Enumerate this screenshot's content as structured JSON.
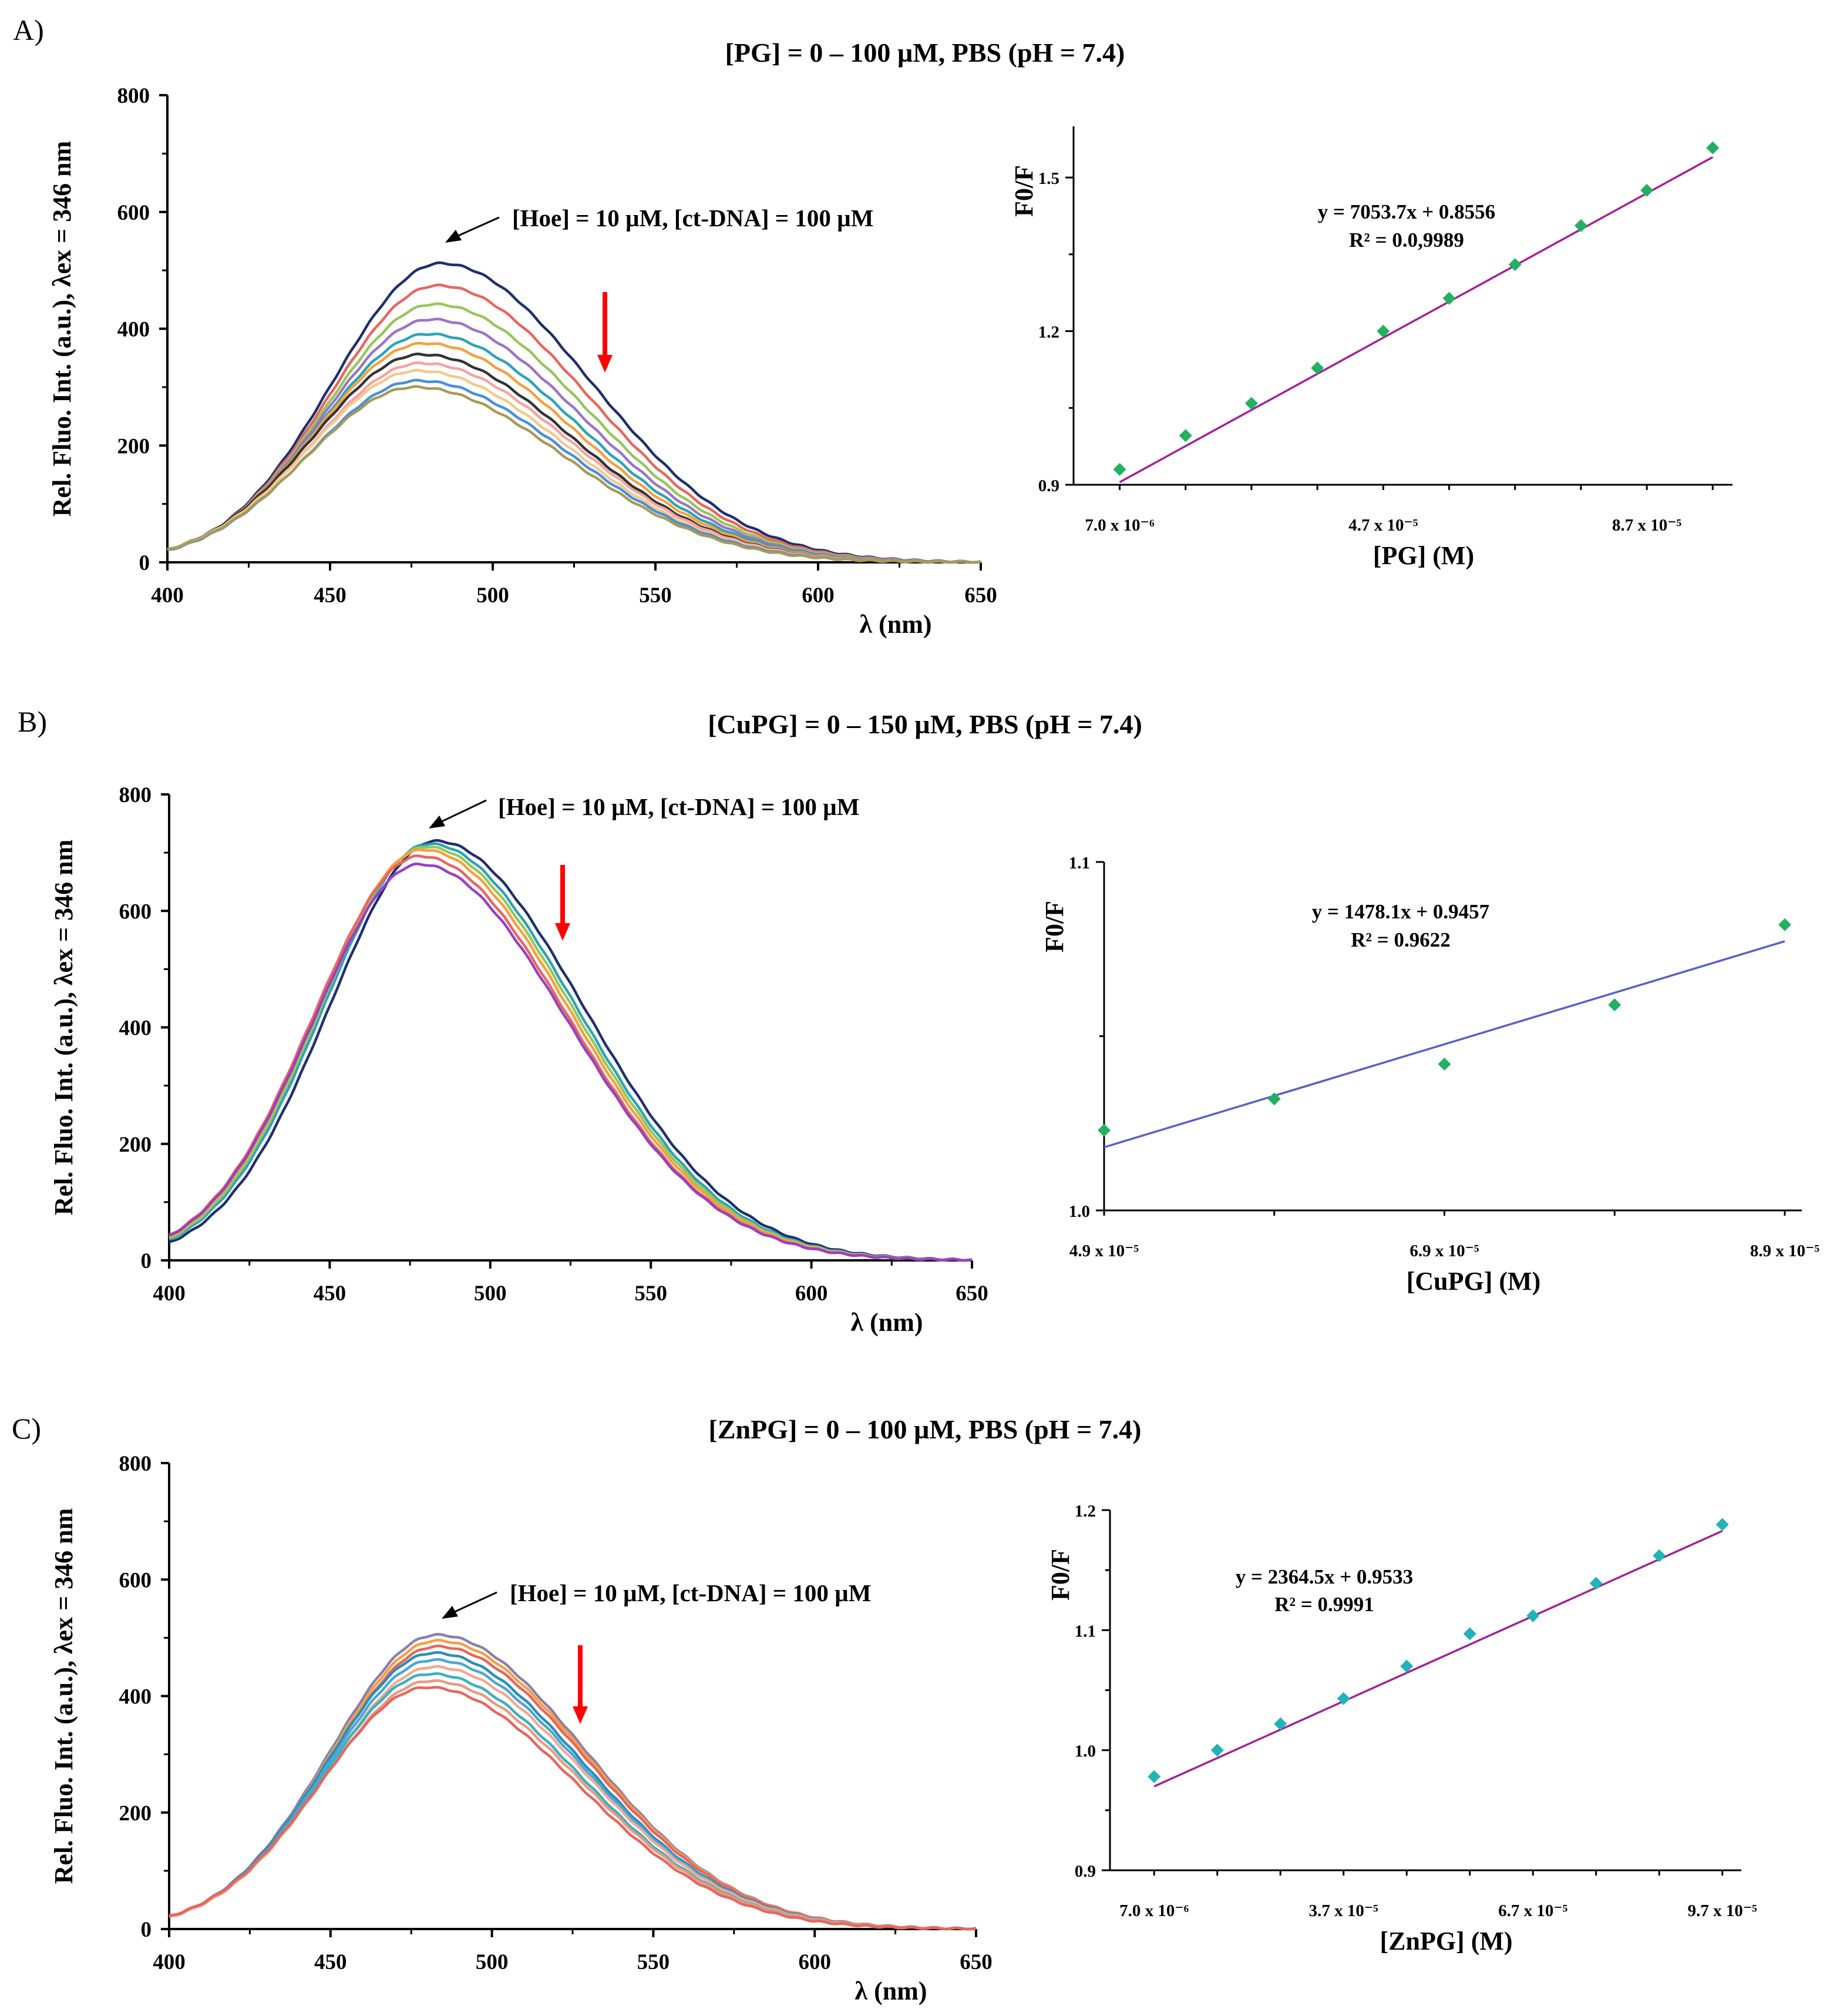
{
  "panels": [
    {
      "label": "A)",
      "title": "[PG] = 0 – 100 µM, PBS (pH = 7.4)",
      "annotation": "[Hoe] = 10 µM, [ct-DNA] = 100 µM",
      "arrow_color": "#ff0000"
    },
    {
      "label": "B)",
      "title": "[CuPG] = 0 – 150 µM, PBS (pH = 7.4)",
      "annotation": "[Hoe] = 10 µM, [ct-DNA] = 100 µM",
      "arrow_color": "#ff0000"
    },
    {
      "label": "C)",
      "title": "[ZnPG] = 0 – 100 µM, PBS (pH = 7.4)",
      "annotation": "[Hoe] = 10 µM, [ct-DNA] = 100 µM",
      "arrow_color": "#ff0000"
    }
  ],
  "chart_data": [
    {
      "id": "A-spectra",
      "type": "line",
      "xlabel": "λ (nm)",
      "ylabel": "Rel. Fluo. Int. (a.u.), λex = 346 nm",
      "xlim": [
        400,
        650
      ],
      "ylim": [
        0,
        800
      ],
      "xticks": [
        "400",
        "450",
        "500",
        "550",
        "600",
        "650"
      ],
      "yticks": [
        "0",
        "200",
        "400",
        "600",
        "800"
      ],
      "series": [
        {
          "name": "s1",
          "peak_x": 484,
          "peak_y": 512,
          "color": "#1f2f6e"
        },
        {
          "name": "s2",
          "peak_x": 483,
          "peak_y": 474,
          "color": "#e8665e"
        },
        {
          "name": "s3",
          "peak_x": 482,
          "peak_y": 442,
          "color": "#96c75a"
        },
        {
          "name": "s4",
          "peak_x": 481,
          "peak_y": 416,
          "color": "#9a75c4"
        },
        {
          "name": "s5",
          "peak_x": 480,
          "peak_y": 391,
          "color": "#2aa4b8"
        },
        {
          "name": "s6",
          "peak_x": 479,
          "peak_y": 375,
          "color": "#f5a040"
        },
        {
          "name": "s7",
          "peak_x": 478,
          "peak_y": 356,
          "color": "#333333"
        },
        {
          "name": "s8",
          "peak_x": 478,
          "peak_y": 341,
          "color": "#f5a3a0"
        },
        {
          "name": "s9",
          "peak_x": 477,
          "peak_y": 328,
          "color": "#f2c98e"
        },
        {
          "name": "s10",
          "peak_x": 477,
          "peak_y": 311,
          "color": "#4a8fd8"
        },
        {
          "name": "s11",
          "peak_x": 476,
          "peak_y": 300,
          "color": "#a89a56"
        }
      ]
    },
    {
      "id": "A-fit",
      "type": "scatter",
      "xlabel": "[PG] (M)",
      "ylabel": "F0/F",
      "xlim": [
        0,
        0.0001
      ],
      "ylim": [
        0.9,
        1.6
      ],
      "xticks": [
        {
          "value": 7e-06,
          "label": "7.0 x 10⁻⁶"
        },
        {
          "value": 4.7e-05,
          "label": "4.7 x 10⁻⁵"
        },
        {
          "value": 8.7e-05,
          "label": "8.7 x 10⁻⁵"
        }
      ],
      "yticks": [
        0.9,
        1.2,
        1.5
      ],
      "ytick_labels": [
        "0.9",
        "1.2",
        "1.5"
      ],
      "x": [
        7e-06,
        1.7e-05,
        2.7e-05,
        3.7e-05,
        4.7e-05,
        5.7e-05,
        6.7e-05,
        7.7e-05,
        8.7e-05,
        9.7e-05
      ],
      "y": [
        0.93,
        0.996,
        1.059,
        1.128,
        1.2,
        1.264,
        1.33,
        1.406,
        1.475,
        1.558
      ],
      "fit": {
        "slope": 7053.7,
        "intercept": 0.8556,
        "color": "#a3219a"
      },
      "marker_color": "#22b061",
      "equation": "y = 7053.7x + 0.8556",
      "r2": "R² = 0.0,9989"
    },
    {
      "id": "B-spectra",
      "type": "line",
      "xlabel": "λ (nm)",
      "ylabel": "Rel. Fluo. Int. (a.u.), λex = 346 nm",
      "xlim": [
        400,
        650
      ],
      "ylim": [
        0,
        800
      ],
      "xticks": [
        "400",
        "450",
        "500",
        "550",
        "600",
        "650"
      ],
      "yticks": [
        "0",
        "200",
        "400",
        "600",
        "800"
      ],
      "series": [
        {
          "name": "s1",
          "peak_x": 483,
          "peak_y": 720,
          "color": "#1f2f6e"
        },
        {
          "name": "s2",
          "peak_x": 481,
          "peak_y": 715,
          "color": "#2aa4b8"
        },
        {
          "name": "s3",
          "peak_x": 480,
          "peak_y": 710,
          "color": "#96c75a"
        },
        {
          "name": "s4",
          "peak_x": 479,
          "peak_y": 705,
          "color": "#f5a040"
        },
        {
          "name": "s5",
          "peak_x": 478,
          "peak_y": 694,
          "color": "#e8665e"
        },
        {
          "name": "s6",
          "peak_x": 478,
          "peak_y": 680,
          "color": "#9a3fc4"
        }
      ]
    },
    {
      "id": "B-fit",
      "type": "scatter",
      "xlabel": "[CuPG] (M)",
      "ylabel": "F0/F",
      "xlim": [
        4.9e-05,
        9e-05
      ],
      "ylim": [
        1.0,
        1.1
      ],
      "xticks": [
        {
          "value": 4.9e-05,
          "label": "4.9 x 10⁻⁵"
        },
        {
          "value": 6.9e-05,
          "label": "6.9 x 10⁻⁵"
        },
        {
          "value": 8.9e-05,
          "label": "8.9 x 10⁻⁵"
        }
      ],
      "yticks": [
        1.0,
        1.1
      ],
      "ytick_labels": [
        "1.0",
        "1.1"
      ],
      "x": [
        4.9e-05,
        5.9e-05,
        6.9e-05,
        7.9e-05,
        8.9e-05
      ],
      "y": [
        1.023,
        1.032,
        1.042,
        1.059,
        1.082
      ],
      "fit": {
        "slope": 1478.1,
        "intercept": 0.9457,
        "color": "#5a5fc8"
      },
      "marker_color": "#22b061",
      "equation": "y = 1478.1x + 0.9457",
      "r2": "R² = 0.9622"
    },
    {
      "id": "C-spectra",
      "type": "line",
      "xlabel": "λ (nm)",
      "ylabel": "Rel. Fluo. Int. (a.u.), λex = 346 nm",
      "xlim": [
        400,
        650
      ],
      "ylim": [
        0,
        800
      ],
      "xticks": [
        "400",
        "450",
        "500",
        "550",
        "600",
        "650"
      ],
      "yticks": [
        "0",
        "200",
        "400",
        "600",
        "800"
      ],
      "series": [
        {
          "name": "s1",
          "peak_x": 483,
          "peak_y": 505,
          "color": "#8a7fb0"
        },
        {
          "name": "s2",
          "peak_x": 483,
          "peak_y": 495,
          "color": "#f5a040"
        },
        {
          "name": "s3",
          "peak_x": 483,
          "peak_y": 485,
          "color": "#e8665e"
        },
        {
          "name": "s4",
          "peak_x": 482,
          "peak_y": 474,
          "color": "#2a8fb8"
        },
        {
          "name": "s5",
          "peak_x": 482,
          "peak_y": 462,
          "color": "#4aa6d8"
        },
        {
          "name": "s6",
          "peak_x": 482,
          "peak_y": 450,
          "color": "#f2a98e"
        },
        {
          "name": "s7",
          "peak_x": 481,
          "peak_y": 438,
          "color": "#3ab0c0"
        },
        {
          "name": "s8",
          "peak_x": 481,
          "peak_y": 426,
          "color": "#e89a80"
        },
        {
          "name": "s9",
          "peak_x": 480,
          "peak_y": 415,
          "color": "#e8665e"
        }
      ]
    },
    {
      "id": "C-fit",
      "type": "scatter",
      "xlabel": "[ZnPG] (M)",
      "ylabel": "F0/F",
      "xlim": [
        0,
        0.0001
      ],
      "ylim": [
        0.9,
        1.2
      ],
      "xticks": [
        {
          "value": 7e-06,
          "label": "7.0 x 10⁻⁶"
        },
        {
          "value": 3.7e-05,
          "label": "3.7 x 10⁻⁵"
        },
        {
          "value": 6.7e-05,
          "label": "6.7 x 10⁻⁵"
        },
        {
          "value": 9.7e-05,
          "label": "9.7 x 10⁻⁵"
        }
      ],
      "yticks": [
        0.9,
        1.0,
        1.1,
        1.2
      ],
      "ytick_labels": [
        "0.9",
        "1.0",
        "1.1",
        "1.2"
      ],
      "x": [
        7e-06,
        1.7e-05,
        2.7e-05,
        3.7e-05,
        4.7e-05,
        5.7e-05,
        6.7e-05,
        7.7e-05,
        8.7e-05,
        9.7e-05
      ],
      "y": [
        0.978,
        1.0,
        1.022,
        1.043,
        1.07,
        1.097,
        1.112,
        1.139,
        1.162,
        1.188
      ],
      "fit": {
        "slope": 2364.5,
        "intercept": 0.9533,
        "color": "#a3219a"
      },
      "marker_color": "#1fb5b8",
      "equation": "y = 2364.5x + 0.9533",
      "r2": "R² = 0.9991"
    }
  ]
}
